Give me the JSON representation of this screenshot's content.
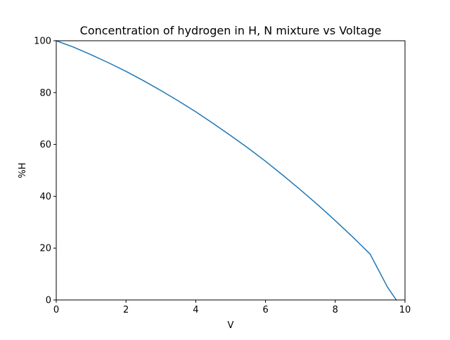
{
  "chart_data": {
    "type": "line",
    "title": "Concentration of hydrogen in H, N mixture vs Voltage",
    "xlabel": "V",
    "ylabel": "%H",
    "xlim": [
      0,
      10
    ],
    "ylim": [
      0,
      100
    ],
    "xticks": [
      "0",
      "2",
      "4",
      "6",
      "8",
      "10"
    ],
    "yticks": [
      "0",
      "20",
      "40",
      "60",
      "80",
      "100"
    ],
    "grid": false,
    "series": [
      {
        "color": "#1f77b4",
        "x": [
          0,
          0.5,
          1,
          1.5,
          2,
          2.5,
          3,
          3.5,
          4,
          4.5,
          5,
          5.5,
          6,
          6.5,
          7,
          7.5,
          8,
          8.5,
          9,
          9.5,
          9.75
        ],
        "y": [
          100,
          97.5,
          94.6,
          91.5,
          88.2,
          84.6,
          80.8,
          76.8,
          72.6,
          68.1,
          63.4,
          58.6,
          53.5,
          48.1,
          42.5,
          36.7,
          30.6,
          24.3,
          17.7,
          4.9,
          0
        ]
      }
    ]
  }
}
